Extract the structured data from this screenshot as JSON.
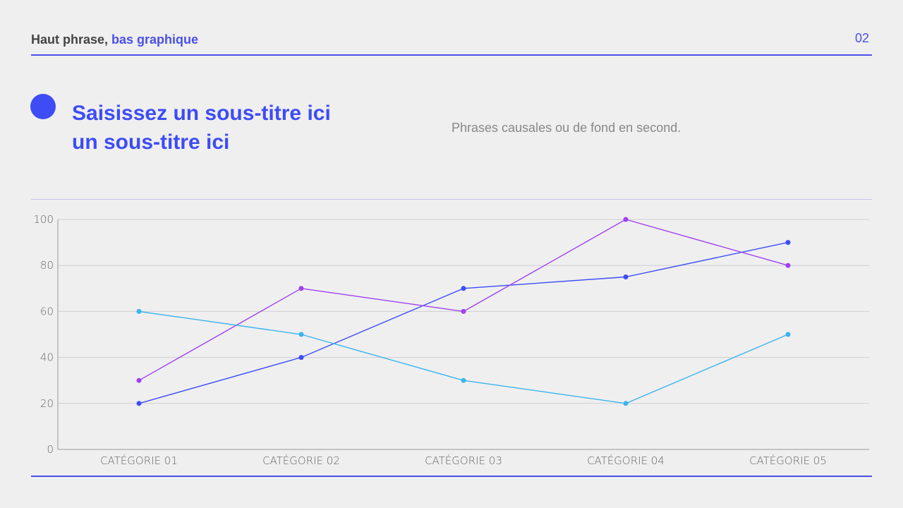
{
  "header": {
    "title_dark": "Haut phrase, ",
    "title_accent": "bas graphique",
    "page_number": "02"
  },
  "subtitle": {
    "line1": "Saisissez un sous-titre ici",
    "line2": "un sous-titre ici"
  },
  "description": "Phrases causales ou de fond en second.",
  "colors": {
    "accent": "#3d4cf5",
    "background": "#efeff0"
  },
  "chart_data": {
    "type": "line",
    "categories": [
      "CATÉGORIE 01",
      "CATÉGORIE 02",
      "CATÉGORIE 03",
      "CATÉGORIE 04",
      "CATÉGORIE 05"
    ],
    "ylim": [
      0,
      100
    ],
    "yticks": [
      0,
      20,
      40,
      60,
      80,
      100
    ],
    "grid": true,
    "series": [
      {
        "color": "#3d4cf5",
        "values": [
          20,
          40,
          70,
          75,
          90
        ]
      },
      {
        "color": "#a040f0",
        "values": [
          30,
          70,
          60,
          100,
          80
        ]
      },
      {
        "color": "#3ab4ee",
        "values": [
          60,
          50,
          30,
          20,
          50
        ]
      }
    ]
  }
}
